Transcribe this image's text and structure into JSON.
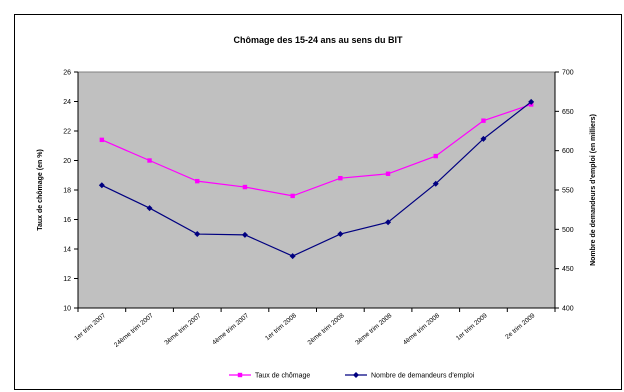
{
  "chart_data": {
    "type": "line",
    "title": "Chômage des 15-24 ans au sens du BIT",
    "ylabel": "Taux de chômage (en %)",
    "y2label": "Nombre de demandeurs d'emploi (en milliers)",
    "xlabel": "",
    "categories": [
      "1er trim 2007",
      "24ème trim 2007",
      "3ème trim 2007",
      "4ème trim 2007",
      "1er trim 2008",
      "2ème trim 2008",
      "3ème trim 2008",
      "4ème trim 2008",
      "1er trim 2009",
      "2e trim 2009"
    ],
    "ylim": [
      10,
      26
    ],
    "yticks": [
      "10",
      "12",
      "14",
      "16",
      "18",
      "20",
      "22",
      "24",
      "26"
    ],
    "y2lim": [
      400,
      700
    ],
    "y2ticks": [
      "400",
      "450",
      "500",
      "550",
      "600",
      "650",
      "700"
    ],
    "series": [
      {
        "name": "Taux de chômage",
        "axis": "left",
        "color": "#ff00ff",
        "marker": "square",
        "values": [
          21.4,
          20.0,
          18.6,
          18.2,
          17.6,
          18.8,
          19.1,
          20.3,
          22.7,
          23.8
        ]
      },
      {
        "name": "Nombre de demandeurs d'emploi",
        "axis": "right",
        "color": "#000080",
        "marker": "diamond",
        "values": [
          556,
          527,
          494,
          493,
          466,
          494,
          509,
          558,
          615,
          662
        ]
      }
    ],
    "plot_background": "#c0c0c0",
    "grid": false,
    "legend_position": "bottom"
  }
}
